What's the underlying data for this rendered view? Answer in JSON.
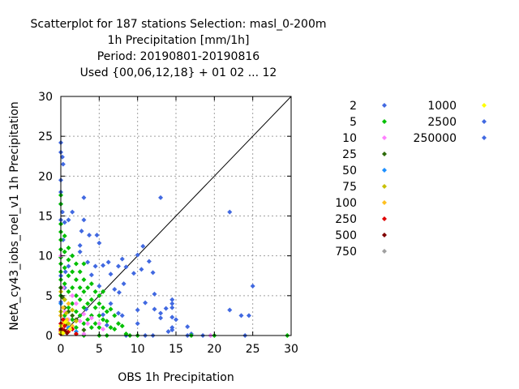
{
  "chart_data": {
    "type": "scatter",
    "title_lines": [
      "Scatterplot for  187 stations Selection: masl_0-200m",
      "1h Precipitation [mm/1h]",
      "Period: 20190801-20190816",
      "Used {00,06,12,18} + 01 02 ... 12"
    ],
    "xlabel": "OBS 1h Precipitation",
    "ylabel": "NetA_cy43_iobs_roel_v1 1h Precipitation",
    "xlim": [
      0,
      30
    ],
    "ylim": [
      0,
      30
    ],
    "xticks": [
      "0",
      "5",
      "10",
      "15",
      "20",
      "25",
      "30"
    ],
    "yticks": [
      "0",
      "5",
      "10",
      "15",
      "20",
      "25",
      "30"
    ],
    "grid": true,
    "diagonal_line": true,
    "legend_placement": "right",
    "legend_columns": [
      [
        {
          "label": "2",
          "color": "#4169e1"
        },
        {
          "label": "5",
          "color": "#00c000"
        },
        {
          "label": "10",
          "color": "#ff80ff"
        },
        {
          "label": "25",
          "color": "#2e6b0a"
        },
        {
          "label": "50",
          "color": "#1e90ff"
        },
        {
          "label": "75",
          "color": "#c8c000"
        },
        {
          "label": "100",
          "color": "#ffc020"
        },
        {
          "label": "250",
          "color": "#e00000"
        },
        {
          "label": "500",
          "color": "#800000"
        },
        {
          "label": "750",
          "color": "#a0a0a0"
        }
      ],
      [
        {
          "label": "1000",
          "color": "#ffff00"
        },
        {
          "label": "2500",
          "color": "#4169e1"
        },
        {
          "label": "250000",
          "color": "#4169e1"
        }
      ]
    ],
    "series": [
      {
        "color": "#4169e1",
        "points": [
          [
            0,
            24.2
          ],
          [
            0,
            23
          ],
          [
            0.2,
            22.4
          ],
          [
            0.3,
            21.5
          ],
          [
            0,
            19.5
          ],
          [
            0,
            18
          ],
          [
            0,
            16.5
          ],
          [
            0.2,
            15.5
          ],
          [
            0,
            14.5
          ],
          [
            0.5,
            14.2
          ],
          [
            1,
            14.5
          ],
          [
            1.5,
            15.5
          ],
          [
            3,
            17.3
          ],
          [
            3,
            14.5
          ],
          [
            2.7,
            13.1
          ],
          [
            3.7,
            12.6
          ],
          [
            4.7,
            12.6
          ],
          [
            5,
            11.6
          ],
          [
            2.5,
            11.3
          ],
          [
            2.5,
            10.5
          ],
          [
            1.5,
            10
          ],
          [
            3.5,
            9.2
          ],
          [
            4.5,
            8.7
          ],
          [
            5.5,
            8.8
          ],
          [
            6.2,
            9.2
          ],
          [
            7.5,
            8.7
          ],
          [
            8,
            9.6
          ],
          [
            6.5,
            7.7
          ],
          [
            4,
            7.6
          ],
          [
            5,
            6.2
          ],
          [
            7,
            5.8
          ],
          [
            8.5,
            8.6
          ],
          [
            9.5,
            7.8
          ],
          [
            10.5,
            8.3
          ],
          [
            10.7,
            11.2
          ],
          [
            10,
            10.1
          ],
          [
            11.5,
            9.3
          ],
          [
            12,
            7.9
          ],
          [
            13,
            17.3
          ],
          [
            12.2,
            5.2
          ],
          [
            11,
            4.1
          ],
          [
            10,
            3.2
          ],
          [
            12.2,
            3.3
          ],
          [
            13,
            2.8
          ],
          [
            13.7,
            3.4
          ],
          [
            14.5,
            3.5
          ],
          [
            14.5,
            4.5
          ],
          [
            14.5,
            4
          ],
          [
            14.5,
            2.3
          ],
          [
            15,
            2
          ],
          [
            14.5,
            1
          ],
          [
            14.5,
            0.7
          ],
          [
            16.5,
            1.1
          ],
          [
            17,
            0.2
          ],
          [
            16.5,
            0
          ],
          [
            18.5,
            0
          ],
          [
            19.5,
            0
          ],
          [
            22,
            15.5
          ],
          [
            22,
            3.2
          ],
          [
            23.5,
            2.5
          ],
          [
            24.5,
            2.5
          ],
          [
            25,
            6.2
          ],
          [
            24,
            0
          ],
          [
            12,
            0
          ],
          [
            11,
            0
          ],
          [
            8.5,
            0
          ],
          [
            8,
            2.5
          ],
          [
            6.5,
            4
          ],
          [
            7.5,
            2.8
          ],
          [
            7.6,
            5.4
          ],
          [
            8.2,
            6.5
          ],
          [
            6,
            1.3
          ],
          [
            0,
            7.5
          ],
          [
            0.5,
            6
          ],
          [
            1,
            8.7
          ],
          [
            0,
            4.2
          ],
          [
            0,
            1.5
          ],
          [
            0.3,
            12
          ],
          [
            0.6,
            8
          ],
          [
            3.3,
            3.3
          ],
          [
            5.5,
            2.6
          ],
          [
            10,
            1.5
          ],
          [
            14,
            0.5
          ],
          [
            13,
            2.2
          ]
        ]
      },
      {
        "color": "#00c000",
        "points": [
          [
            0,
            17.6
          ],
          [
            0,
            16.5
          ],
          [
            0,
            14
          ],
          [
            0,
            13
          ],
          [
            0,
            12
          ],
          [
            0,
            10.8
          ],
          [
            0,
            9.8
          ],
          [
            0,
            9
          ],
          [
            0,
            8
          ],
          [
            0,
            7
          ],
          [
            0,
            6
          ],
          [
            0,
            5
          ],
          [
            0.5,
            12.5
          ],
          [
            0.5,
            10.5
          ],
          [
            0.5,
            8.5
          ],
          [
            0.5,
            6.5
          ],
          [
            0.5,
            4.5
          ],
          [
            0.5,
            2.5
          ],
          [
            1,
            11
          ],
          [
            1,
            9.5
          ],
          [
            1,
            7.5
          ],
          [
            1,
            5.5
          ],
          [
            1,
            3.5
          ],
          [
            1.5,
            10
          ],
          [
            1.5,
            8
          ],
          [
            1.5,
            6
          ],
          [
            1.5,
            4
          ],
          [
            1.5,
            2
          ],
          [
            2,
            9
          ],
          [
            2,
            7
          ],
          [
            2,
            5
          ],
          [
            2,
            3
          ],
          [
            2,
            1
          ],
          [
            2.5,
            8
          ],
          [
            2.5,
            6
          ],
          [
            2.5,
            4.5
          ],
          [
            2.5,
            2.5
          ],
          [
            3,
            9
          ],
          [
            3,
            7
          ],
          [
            3,
            5.5
          ],
          [
            3,
            3.5
          ],
          [
            3,
            1.5
          ],
          [
            3.5,
            6
          ],
          [
            3.5,
            4
          ],
          [
            3.5,
            2
          ],
          [
            4,
            6.5
          ],
          [
            4,
            4.5
          ],
          [
            4,
            2.5
          ],
          [
            4,
            1
          ],
          [
            4.5,
            5.5
          ],
          [
            4.5,
            3.5
          ],
          [
            4.5,
            1.5
          ],
          [
            5,
            5
          ],
          [
            5,
            4
          ],
          [
            5,
            2.5
          ],
          [
            5,
            1
          ],
          [
            5.5,
            5.5
          ],
          [
            5.5,
            3.5
          ],
          [
            5.5,
            2
          ],
          [
            6,
            3
          ],
          [
            6,
            1.8
          ],
          [
            6.5,
            3.3
          ],
          [
            6.5,
            1
          ],
          [
            7,
            2.5
          ],
          [
            7,
            0.8
          ],
          [
            7.5,
            1.5
          ],
          [
            8,
            1.2
          ],
          [
            8.5,
            0.2
          ],
          [
            9,
            0
          ],
          [
            10,
            0
          ],
          [
            17,
            0
          ],
          [
            20,
            0
          ],
          [
            29.5,
            0
          ],
          [
            3,
            0
          ],
          [
            5,
            0
          ],
          [
            6,
            0
          ]
        ]
      },
      {
        "color": "#ff80ff",
        "points": [
          [
            0,
            10
          ],
          [
            0.3,
            6
          ],
          [
            0.5,
            3
          ],
          [
            1,
            2
          ],
          [
            1.5,
            5
          ],
          [
            2,
            4
          ],
          [
            2.5,
            1.8
          ],
          [
            3,
            2.7
          ],
          [
            3.5,
            1.5
          ],
          [
            4,
            2.2
          ],
          [
            5,
            1.5
          ],
          [
            5.5,
            0.8
          ],
          [
            3,
            0.2
          ],
          [
            19.5,
            0
          ]
        ]
      },
      {
        "color": "#2e6b0a",
        "points": [
          [
            0,
            6
          ],
          [
            0.2,
            4.8
          ],
          [
            0.5,
            3.5
          ],
          [
            1,
            3
          ],
          [
            1.5,
            2.5
          ],
          [
            2,
            2
          ],
          [
            0.8,
            1.5
          ],
          [
            3,
            0.7
          ],
          [
            0,
            2.5
          ]
        ]
      },
      {
        "color": "#1e90ff",
        "points": [
          [
            0,
            4
          ],
          [
            0.5,
            2
          ],
          [
            1,
            1
          ],
          [
            2,
            0.5
          ]
        ]
      },
      {
        "color": "#c8c000",
        "points": [
          [
            0,
            3
          ],
          [
            0.3,
            2
          ],
          [
            0.7,
            2.8
          ],
          [
            1,
            1.5
          ],
          [
            1.5,
            3.2
          ],
          [
            2,
            1.8
          ],
          [
            0.5,
            4.5
          ],
          [
            0,
            5.5
          ]
        ]
      },
      {
        "color": "#ffc020",
        "points": [
          [
            0,
            2.5
          ],
          [
            0.3,
            3.5
          ],
          [
            0.8,
            2
          ],
          [
            1,
            4
          ],
          [
            1.5,
            1.2
          ],
          [
            0.2,
            1.5
          ]
        ]
      },
      {
        "color": "#e00000",
        "points": [
          [
            0,
            1.5
          ],
          [
            0.2,
            0.8
          ],
          [
            0.5,
            1.2
          ],
          [
            1,
            0.5
          ],
          [
            1.5,
            0.8
          ],
          [
            0.3,
            2
          ],
          [
            0,
            0.6
          ],
          [
            2,
            0.2
          ]
        ]
      },
      {
        "color": "#800000",
        "points": [
          [
            0,
            0.8
          ],
          [
            0.2,
            0.4
          ],
          [
            0.5,
            0.6
          ],
          [
            0.8,
            0.3
          ],
          [
            0,
            0.2
          ]
        ]
      },
      {
        "color": "#ffff00",
        "points": [
          [
            0,
            1.2
          ],
          [
            0.3,
            0.3
          ],
          [
            0,
            0.4
          ],
          [
            0.6,
            1.7
          ],
          [
            1.2,
            0.8
          ]
        ]
      }
    ]
  }
}
